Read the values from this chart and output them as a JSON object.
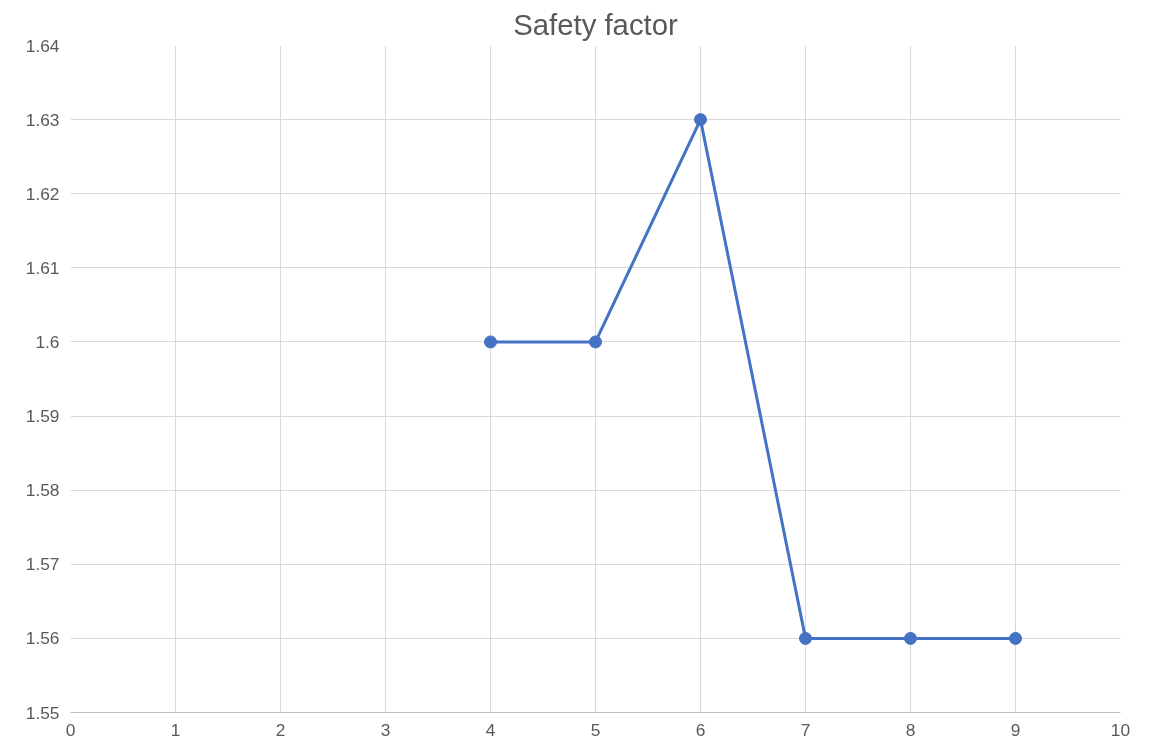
{
  "chart_data": {
    "type": "line",
    "title": "Safety factor",
    "x": [
      4,
      5,
      6,
      7,
      8,
      9
    ],
    "series": [
      {
        "color": "#4472c4",
        "values": [
          1.6,
          1.6,
          1.63,
          1.56,
          1.56,
          1.56
        ]
      }
    ],
    "xlim": [
      0,
      10
    ],
    "xticks": [
      0,
      1,
      2,
      3,
      4,
      5,
      6,
      7,
      8,
      9,
      10
    ],
    "ylim": [
      1.55,
      1.64
    ],
    "yticks": [
      {
        "value": 1.55,
        "label": "1.55"
      },
      {
        "value": 1.56,
        "label": "1.56"
      },
      {
        "value": 1.57,
        "label": "1.57"
      },
      {
        "value": 1.58,
        "label": "1.58"
      },
      {
        "value": 1.59,
        "label": "1.59"
      },
      {
        "value": 1.6,
        "label": "1.6"
      },
      {
        "value": 1.61,
        "label": "1.61"
      },
      {
        "value": 1.62,
        "label": "1.62"
      },
      {
        "value": 1.63,
        "label": "1.63"
      },
      {
        "value": 1.64,
        "label": "1.64"
      }
    ],
    "grid": true,
    "marker": "circle",
    "line_style": "solid"
  }
}
